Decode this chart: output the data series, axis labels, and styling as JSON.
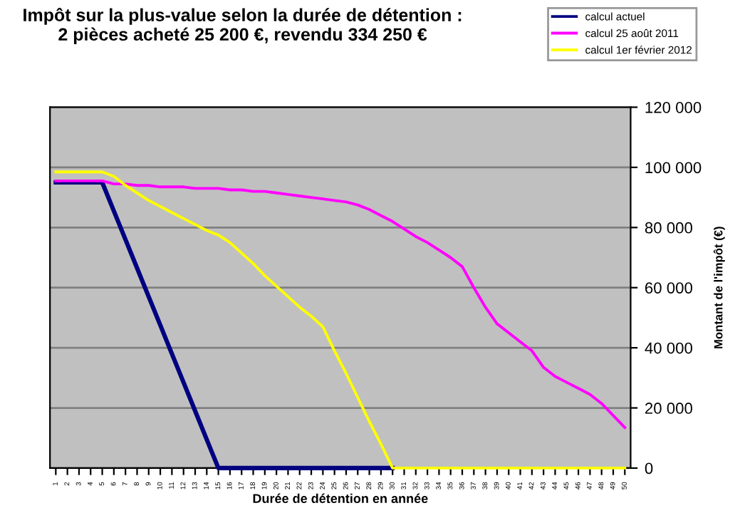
{
  "chart_data": {
    "type": "line",
    "title": "Impôt sur la plus-value selon la durée de détention :\n2 pièces acheté 25 200 €, revendu 334 250 €",
    "xlabel": "Durée de détention en année",
    "ylabel": "Montant de l'impôt (€)",
    "categories": [
      "1",
      "2",
      "3",
      "4",
      "5",
      "6",
      "7",
      "8",
      "9",
      "10",
      "11",
      "12",
      "13",
      "14",
      "15",
      "16",
      "17",
      "18",
      "19",
      "20",
      "21",
      "22",
      "23",
      "24",
      "25",
      "26",
      "27",
      "28",
      "29",
      "30",
      "31",
      "32",
      "33",
      "34",
      "35",
      "36",
      "37",
      "38",
      "39",
      "40",
      "41",
      "42",
      "43",
      "44",
      "45",
      "46",
      "47",
      "48",
      "49",
      "50"
    ],
    "series": [
      {
        "name": "calcul actuel",
        "color": "#000080",
        "values": [
          95000,
          95000,
          95000,
          95000,
          95000,
          85500,
          76000,
          66500,
          57000,
          47500,
          38000,
          28500,
          19000,
          9500,
          0,
          0,
          0,
          0,
          0,
          0,
          0,
          0,
          0,
          0,
          0,
          0,
          0,
          0,
          0,
          0,
          null,
          null,
          null,
          null,
          null,
          null,
          null,
          null,
          null,
          null,
          null,
          null,
          null,
          null,
          null,
          null,
          null,
          null,
          null,
          null
        ]
      },
      {
        "name": "calcul 25 août 2011",
        "color": "#ff00ff",
        "values": [
          95500,
          95500,
          95500,
          95500,
          95500,
          94500,
          94500,
          94000,
          94000,
          93500,
          93500,
          93500,
          93000,
          93000,
          93000,
          92500,
          92500,
          92000,
          92000,
          91500,
          91000,
          90500,
          90000,
          89500,
          89000,
          88500,
          87500,
          86000,
          84000,
          82000,
          79500,
          77000,
          75000,
          72500,
          70000,
          67000,
          60000,
          53500,
          48000,
          45000,
          42000,
          39000,
          33500,
          30500,
          28500,
          26500,
          24500,
          21500,
          17500,
          13500
        ]
      },
      {
        "name": "calcul 1er février 2012",
        "color": "#ffff00",
        "values": [
          98500,
          98500,
          98500,
          98500,
          98500,
          97000,
          94000,
          91500,
          89000,
          87000,
          85000,
          83000,
          81000,
          79000,
          77500,
          75000,
          71500,
          68000,
          64000,
          60500,
          57000,
          53500,
          50500,
          47000,
          39000,
          31500,
          23500,
          15500,
          8000,
          0,
          0,
          0,
          0,
          0,
          0,
          0,
          0,
          0,
          0,
          0,
          0,
          0,
          0,
          0,
          0,
          0,
          0,
          0,
          0,
          0
        ]
      }
    ],
    "ylim": [
      0,
      120000
    ],
    "yticks": [
      {
        "value": 0,
        "label": "0"
      },
      {
        "value": 20000,
        "label": "20 000"
      },
      {
        "value": 40000,
        "label": "40 000"
      },
      {
        "value": 60000,
        "label": "60 000"
      },
      {
        "value": 80000,
        "label": "80 000"
      },
      {
        "value": 100000,
        "label": "100 000"
      },
      {
        "value": 120000,
        "label": "120 000"
      }
    ],
    "grid": "y",
    "legend": "top right",
    "marker": "none",
    "line_style": "solid"
  }
}
